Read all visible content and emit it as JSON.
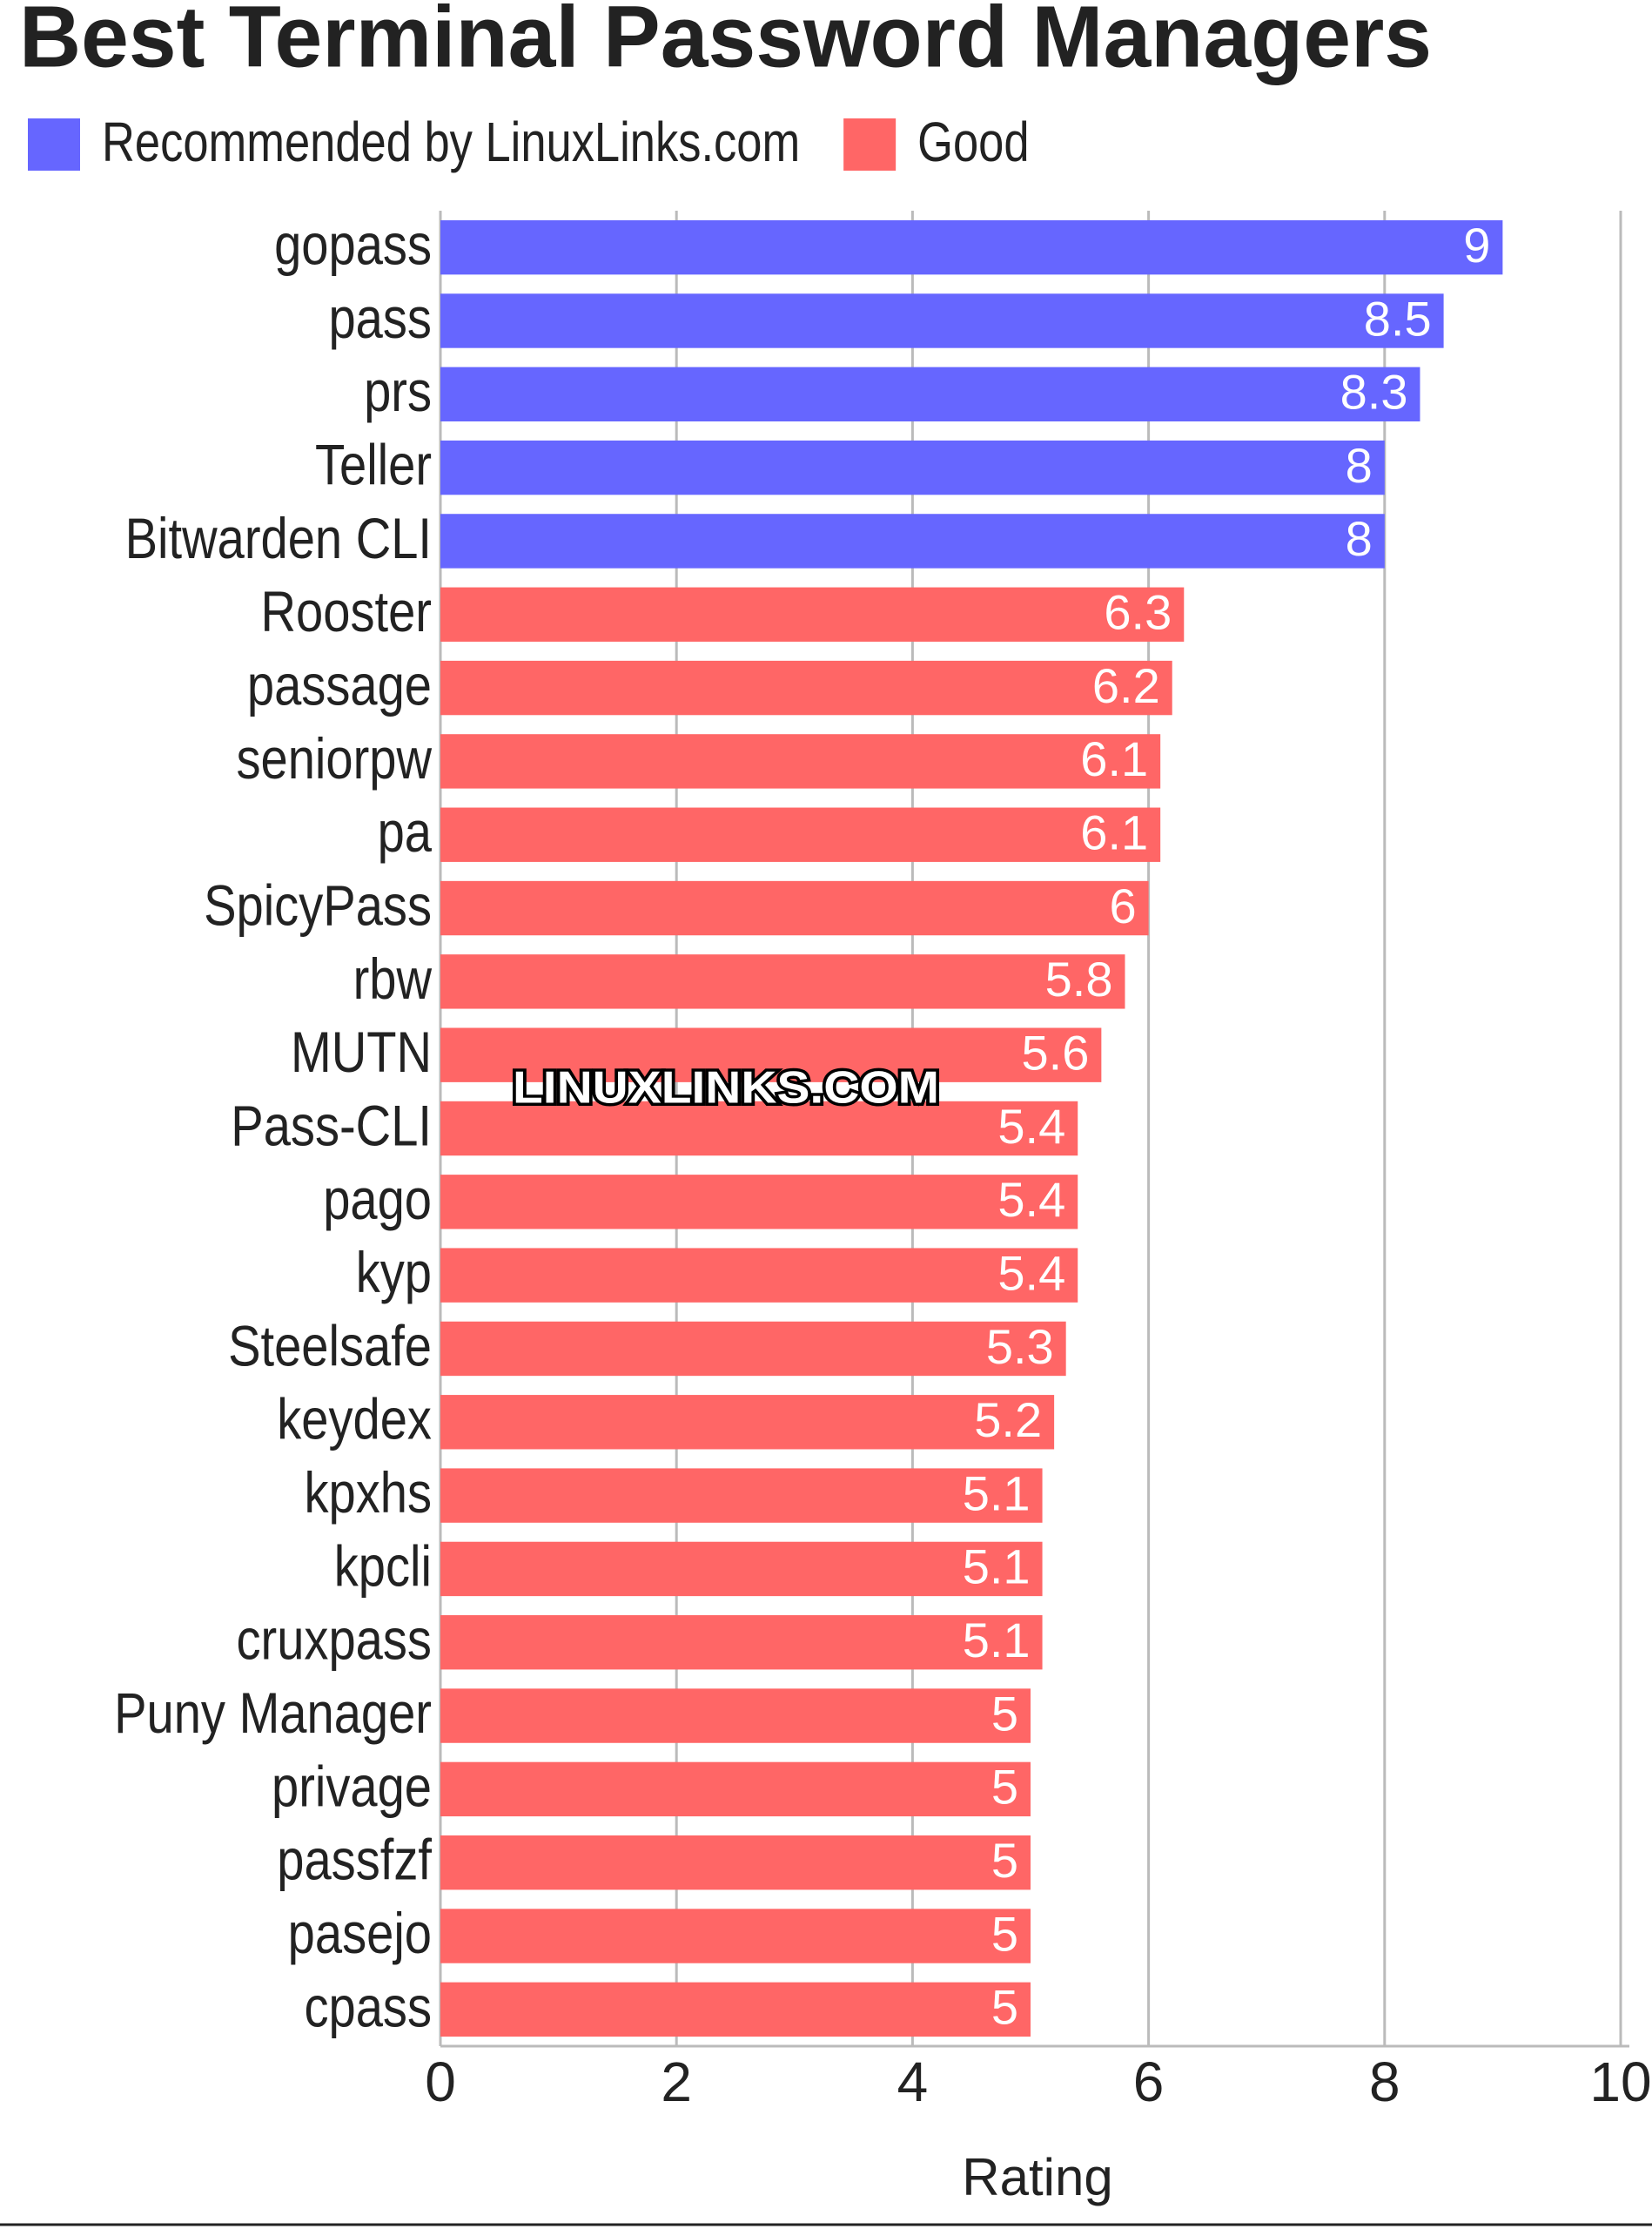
{
  "chart_data": {
    "type": "barh",
    "title": "Best Terminal Password Managers",
    "categories": [
      "gopass",
      "pass",
      "prs",
      "Teller",
      "Bitwarden CLI",
      "Rooster",
      "passage",
      "seniorpw",
      "pa",
      "SpicyPass",
      "rbw",
      "MUTN",
      "Pass-CLI",
      "pago",
      "kyp",
      "Steelsafe",
      "keydex",
      "kpxhs",
      "kpcli",
      "cruxpass",
      "Puny Manager",
      "privage",
      "passfzf",
      "pasejo",
      "cpass"
    ],
    "series": [
      {
        "name": "Recommended by LinuxLinks.com",
        "color": "#6666ff",
        "values": [
          9,
          8.5,
          8.3,
          8,
          8,
          null,
          null,
          null,
          null,
          null,
          null,
          null,
          null,
          null,
          null,
          null,
          null,
          null,
          null,
          null,
          null,
          null,
          null,
          null,
          null
        ]
      },
      {
        "name": "Good",
        "color": "#ff6666",
        "values": [
          null,
          null,
          null,
          null,
          null,
          6.3,
          6.2,
          6.1,
          6.1,
          6,
          5.8,
          5.6,
          5.4,
          5.4,
          5.4,
          5.3,
          5.2,
          5.1,
          5.1,
          5.1,
          5,
          5,
          5,
          5,
          5
        ]
      }
    ],
    "xlabel": "Rating",
    "xlim": [
      0,
      10
    ],
    "xticks": [
      0,
      2,
      4,
      6,
      8,
      10
    ],
    "grid": true,
    "legend": "top-left",
    "watermark": "LINUXLINKS.COM"
  }
}
